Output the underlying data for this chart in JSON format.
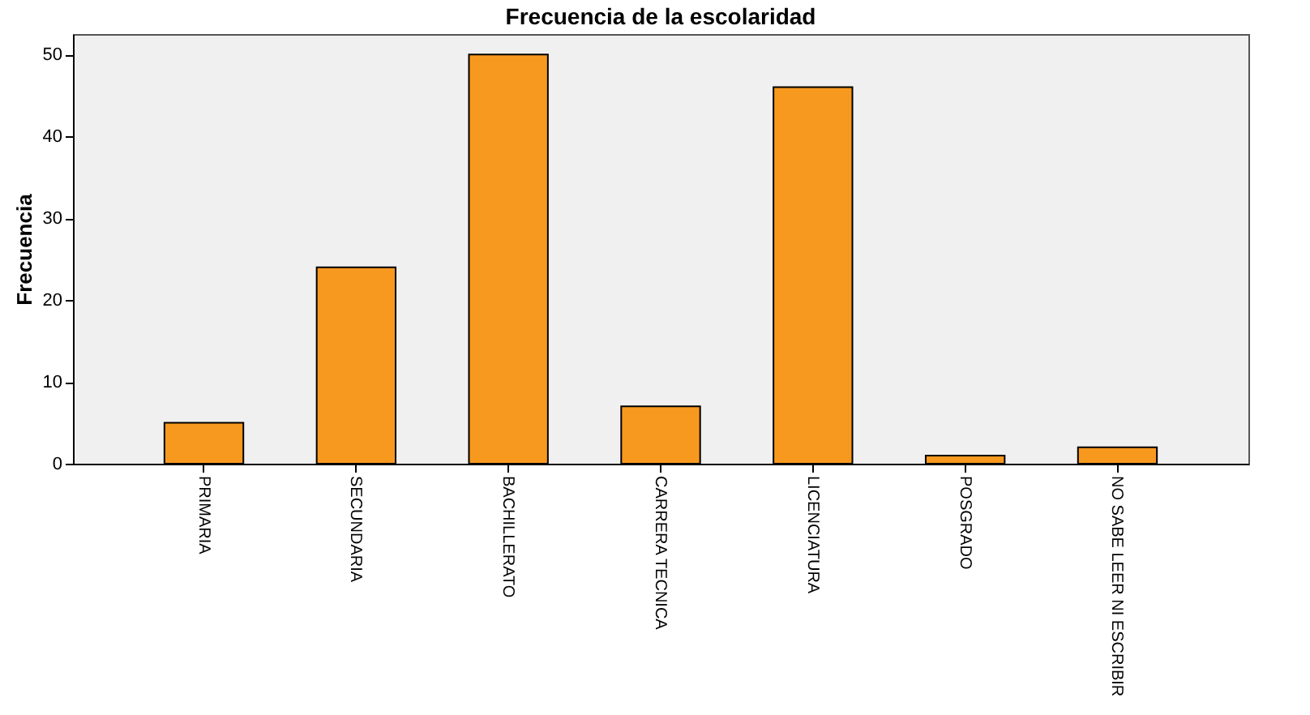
{
  "chart_data": {
    "type": "bar",
    "title": "Frecuencia de la escolaridad",
    "ylabel": "Frecuencia",
    "categories": [
      "PRIMARIA",
      "SECUNDARIA",
      "BACHILLERATO",
      "CARRERA TECNICA",
      "LICENCIATURA",
      "POSGRADO",
      "NO SABE LEER NI ESCRIBIR"
    ],
    "values": [
      5,
      24,
      50,
      7,
      46,
      1,
      2
    ],
    "color": "#f7981f",
    "ylim": [
      0,
      52.5
    ],
    "yticks": [
      0,
      10,
      20,
      30,
      40,
      50
    ],
    "grid": false
  }
}
